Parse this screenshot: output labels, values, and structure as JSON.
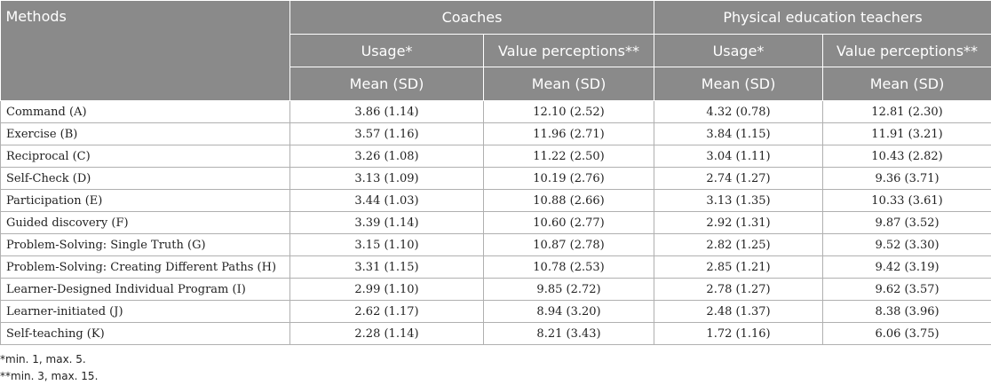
{
  "table": {
    "methods_header": "Methods",
    "groups": [
      "Coaches",
      "Physical education teachers"
    ],
    "subheaders": [
      "Usage*",
      "Value perceptions**",
      "Usage*",
      "Value perceptions**"
    ],
    "measure_headers": [
      "Mean (SD)",
      "Mean (SD)",
      "Mean (SD)",
      "Mean (SD)"
    ],
    "rows": [
      {
        "method": "Command (A)",
        "values": [
          "3.86 (1.14)",
          "12.10 (2.52)",
          "4.32 (0.78)",
          "12.81 (2.30)"
        ]
      },
      {
        "method": "Exercise (B)",
        "values": [
          "3.57 (1.16)",
          "11.96 (2.71)",
          "3.84 (1.15)",
          "11.91 (3.21)"
        ]
      },
      {
        "method": "Reciprocal (C)",
        "values": [
          "3.26 (1.08)",
          "11.22 (2.50)",
          "3.04 (1.11)",
          "10.43 (2.82)"
        ]
      },
      {
        "method": "Self-Check (D)",
        "values": [
          "3.13 (1.09)",
          "10.19 (2.76)",
          "2.74 (1.27)",
          "9.36 (3.71)"
        ]
      },
      {
        "method": "Participation (E)",
        "values": [
          "3.44 (1.03)",
          "10.88 (2.66)",
          "3.13 (1.35)",
          "10.33 (3.61)"
        ]
      },
      {
        "method": "Guided discovery (F)",
        "values": [
          "3.39 (1.14)",
          "10.60 (2.77)",
          "2.92 (1.31)",
          "9.87 (3.52)"
        ]
      },
      {
        "method": "Problem-Solving: Single Truth (G)",
        "values": [
          "3.15 (1.10)",
          "10.87 (2.78)",
          "2.82 (1.25)",
          "9.52 (3.30)"
        ]
      },
      {
        "method": "Problem-Solving: Creating Different Paths (H)",
        "values": [
          "3.31 (1.15)",
          "10.78 (2.53)",
          "2.85 (1.21)",
          "9.42 (3.19)"
        ]
      },
      {
        "method": "Learner-Designed Individual Program (I)",
        "values": [
          "2.99 (1.10)",
          "9.85 (2.72)",
          "2.78 (1.27)",
          "9.62 (3.57)"
        ]
      },
      {
        "method": "Learner-initiated (J)",
        "values": [
          "2.62 (1.17)",
          "8.94 (3.20)",
          "2.48 (1.37)",
          "8.38 (3.96)"
        ]
      },
      {
        "method": "Self-teaching (K)",
        "values": [
          "2.28 (1.14)",
          "8.21 (3.43)",
          "1.72 (1.16)",
          "6.06 (3.75)"
        ]
      }
    ]
  },
  "footnotes": [
    "*min. 1, max. 5.",
    "**min. 3, max. 15."
  ],
  "colors": {
    "header_bg": "#8a8a8a",
    "header_text": "#ffffff",
    "rule": "#b0b0b0"
  }
}
